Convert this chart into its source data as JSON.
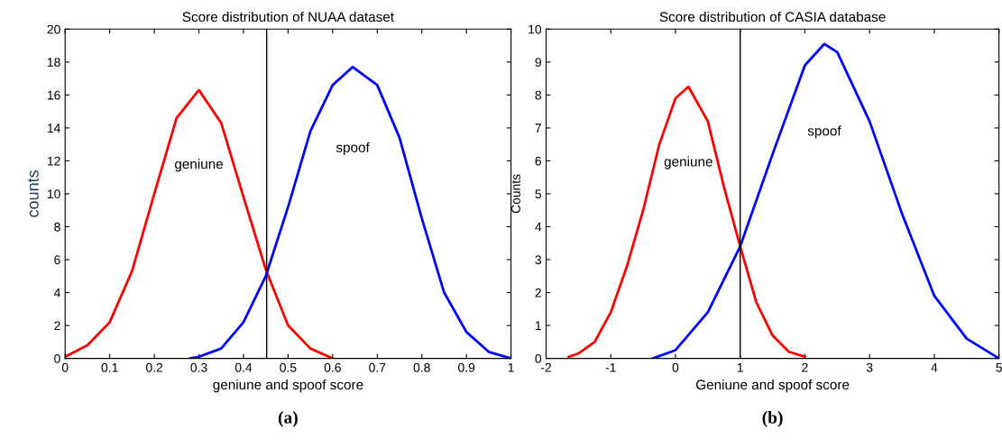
{
  "chart_data": [
    {
      "type": "line",
      "title": "Score distribution of NUAA dataset",
      "xlabel": "geniune and spoof score",
      "ylabel": "counts",
      "xlim": [
        0,
        1
      ],
      "xticks": [
        0,
        0.1,
        0.2,
        0.3,
        0.4,
        0.5,
        0.6,
        0.7,
        0.8,
        0.9,
        1
      ],
      "ylim": [
        0,
        20
      ],
      "yticks": [
        0,
        2,
        4,
        6,
        8,
        10,
        12,
        14,
        16,
        18,
        20
      ],
      "grid": false,
      "legend": false,
      "marker": "none",
      "line_style": "solid",
      "series": [
        {
          "name": "geniune",
          "color": "#ff0000",
          "x": [
            0,
            0.05,
            0.1,
            0.15,
            0.2,
            0.25,
            0.3,
            0.35,
            0.4,
            0.45,
            0.5,
            0.55,
            0.6
          ],
          "values": [
            0.1,
            0.8,
            2.2,
            5.3,
            10.0,
            14.6,
            16.3,
            14.3,
            9.8,
            5.4,
            2.0,
            0.6,
            0.0
          ]
        },
        {
          "name": "spoof",
          "color": "#0000ff",
          "x": [
            0.28,
            0.3,
            0.35,
            0.4,
            0.45,
            0.5,
            0.55,
            0.6,
            0.645,
            0.7,
            0.75,
            0.8,
            0.85,
            0.9,
            0.95,
            1.0
          ],
          "values": [
            0,
            0.1,
            0.6,
            2.2,
            5.0,
            9.2,
            13.8,
            16.6,
            17.7,
            16.6,
            13.4,
            8.5,
            4.0,
            1.6,
            0.4,
            0.0
          ]
        }
      ],
      "ref_lines": [
        {
          "axis": "x",
          "value": 0.452,
          "color": "#000000"
        }
      ],
      "annotations": [
        "(a)"
      ]
    },
    {
      "type": "line",
      "title": "Score distribution of CASIA database",
      "xlabel": "Geniune and spoof score",
      "ylabel": "Counts",
      "xlim": [
        -2,
        5
      ],
      "xticks": [
        -2,
        -1,
        0,
        1,
        2,
        3,
        4,
        5
      ],
      "ylim": [
        0,
        10
      ],
      "yticks": [
        0,
        1,
        2,
        3,
        4,
        5,
        6,
        7,
        8,
        9,
        10
      ],
      "grid": false,
      "legend": false,
      "marker": "none",
      "line_style": "solid",
      "series": [
        {
          "name": "geniune",
          "color": "#ff0000",
          "x": [
            -1.65,
            -1.5,
            -1.25,
            -1,
            -0.75,
            -0.5,
            -0.25,
            0,
            0.2,
            0.5,
            0.75,
            1,
            1.25,
            1.5,
            1.75,
            2.0
          ],
          "values": [
            0.05,
            0.15,
            0.5,
            1.4,
            2.8,
            4.5,
            6.5,
            7.9,
            8.25,
            7.2,
            5.2,
            3.4,
            1.7,
            0.7,
            0.2,
            0.05
          ]
        },
        {
          "name": "spoof",
          "color": "#0000ff",
          "x": [
            -0.35,
            0,
            0.5,
            1,
            1.5,
            2,
            2.3,
            2.5,
            3,
            3.5,
            4,
            4.5,
            5
          ],
          "values": [
            0,
            0.25,
            1.4,
            3.4,
            6.2,
            8.9,
            9.55,
            9.3,
            7.2,
            4.4,
            1.9,
            0.6,
            0.0
          ]
        }
      ],
      "ref_lines": [
        {
          "axis": "x",
          "value": 1,
          "color": "#000000"
        }
      ],
      "annotations": [
        "(b)"
      ]
    }
  ]
}
